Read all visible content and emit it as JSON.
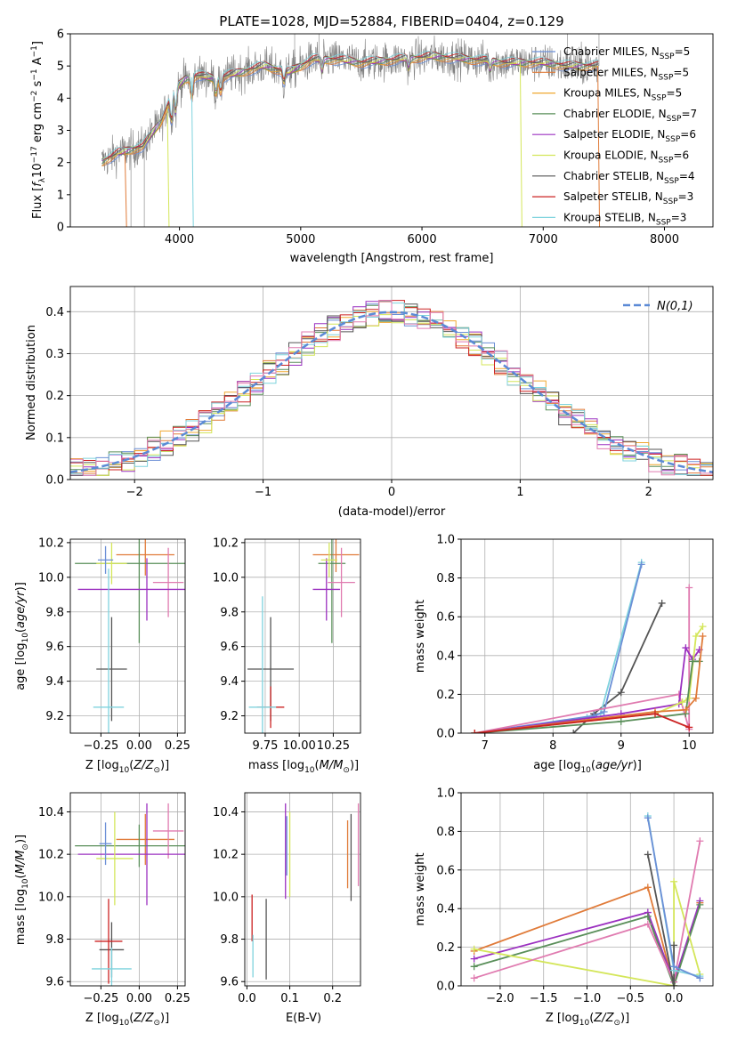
{
  "figure": {
    "title": "PLATE=1028, MJD=52884, FIBERID=0404, z=0.129"
  },
  "colors": {
    "chabrier_miles": "#6b8fd6",
    "salpeter_miles": "#e07b39",
    "kroupa_miles": "#f0a830",
    "chabrier_elodie": "#5a8f5a",
    "salpeter_elodie": "#9b30c0",
    "kroupa_elodie": "#d4e65a",
    "chabrier_stelib": "#555555",
    "salpeter_stelib": "#cc2222",
    "kroupa_stelib": "#7fd3de",
    "pink": "#e07bb0",
    "data": "#808080",
    "gaussian": "#5b8ad6",
    "grid": "#b0b0b0"
  },
  "chart_data": [
    {
      "type": "line",
      "id": "spectrum",
      "title": "PLATE=1028, MJD=52884, FIBERID=0404, z=0.129",
      "xlabel": "wavelength [Angstrom, rest frame]",
      "ylabel": "Flux [f_λ 10^-17 erg cm^-2 s^-1 A^-1]",
      "xlim": [
        3100,
        8400
      ],
      "ylim": [
        0,
        6
      ],
      "xticks": [
        4000,
        5000,
        6000,
        7000,
        8000
      ],
      "yticks": [
        0,
        1,
        2,
        3,
        4,
        5,
        6
      ],
      "grid": false,
      "legend_position": "upper-right",
      "continuum": {
        "x": [
          3350,
          3500,
          3700,
          3850,
          3950,
          4050,
          4150,
          4300,
          4500,
          4700,
          4900,
          5100,
          5300,
          5500,
          5800,
          6100,
          6400,
          6700,
          7000,
          7200,
          7450
        ],
        "y": [
          2.0,
          2.3,
          2.5,
          3.3,
          4.2,
          4.6,
          4.7,
          4.6,
          4.8,
          5.0,
          4.8,
          5.2,
          5.2,
          5.1,
          5.2,
          5.3,
          5.2,
          5.1,
          5.1,
          5.0,
          5.0
        ]
      },
      "series": [
        {
          "name": "Chabrier MILES, N_SSP=5",
          "color_key": "chabrier_miles"
        },
        {
          "name": "Salpeter MILES, N_SSP=5",
          "color_key": "salpeter_miles"
        },
        {
          "name": "Kroupa MILES, N_SSP=5",
          "color_key": "kroupa_miles"
        },
        {
          "name": "Chabrier ELODIE, N_SSP=7",
          "color_key": "chabrier_elodie"
        },
        {
          "name": "Salpeter ELODIE, N_SSP=6",
          "color_key": "salpeter_elodie"
        },
        {
          "name": "Kroupa ELODIE, N_SSP=6",
          "color_key": "kroupa_elodie"
        },
        {
          "name": "Chabrier STELIB, N_SSP=4",
          "color_key": "chabrier_stelib"
        },
        {
          "name": "Salpeter STELIB, N_SSP=3",
          "color_key": "salpeter_stelib"
        },
        {
          "name": "Kroupa STELIB, N_SSP=3",
          "color_key": "kroupa_stelib"
        }
      ]
    },
    {
      "type": "line",
      "id": "residuals",
      "xlabel": "(data-model)/error",
      "ylabel": "Normed distribution",
      "xlim": [
        -2.5,
        2.5
      ],
      "ylim": [
        0,
        0.46
      ],
      "xticks": [
        -2,
        -1,
        0,
        1,
        2
      ],
      "yticks": [
        0.0,
        0.1,
        0.2,
        0.3,
        0.4
      ],
      "grid": true,
      "legend_position": "upper-right",
      "gaussian_label": "N(0,1)",
      "bin_width": 0.1
    },
    {
      "type": "scatter",
      "id": "z_age",
      "xlabel": "Z [log10(Z/Z☉)]",
      "ylabel": "age [log10(age/yr)]",
      "xlim": [
        -0.45,
        0.3
      ],
      "ylim": [
        9.1,
        10.22
      ],
      "xticks": [
        -0.25,
        0.0,
        0.25
      ],
      "yticks": [
        9.2,
        9.4,
        9.6,
        9.8,
        10.0,
        10.2
      ],
      "grid": true,
      "points": [
        {
          "color_key": "salpeter_miles",
          "x": 0.04,
          "y": 10.13,
          "xerr": 0.19,
          "yerr": 0.12
        },
        {
          "color_key": "chabrier_elodie",
          "x": 0.0,
          "y": 10.08,
          "xerr": 0.42,
          "yerr": 0.46
        },
        {
          "color_key": "pink",
          "x": 0.19,
          "y": 9.97,
          "xerr": 0.1,
          "yerr": 0.2
        },
        {
          "color_key": "salpeter_elodie",
          "x": 0.05,
          "y": 9.93,
          "xerr": 0.45,
          "yerr": 0.18
        },
        {
          "color_key": "kroupa_elodie",
          "x": -0.18,
          "y": 10.08,
          "xerr": 0.1,
          "yerr": 0.12
        },
        {
          "color_key": "chabrier_stelib",
          "x": -0.18,
          "y": 9.47,
          "xerr": 0.1,
          "yerr": 0.3
        },
        {
          "color_key": "kroupa_stelib",
          "x": -0.2,
          "y": 9.25,
          "xerr": 0.1,
          "yerr": 0.8
        },
        {
          "color_key": "chabrier_miles",
          "x": -0.22,
          "y": 10.1,
          "xerr": 0.05,
          "yerr": 0.08
        }
      ]
    },
    {
      "type": "scatter",
      "id": "mass_age",
      "xlabel": "mass [log10(M/M☉)]",
      "ylabel": "",
      "xlim": [
        9.6,
        10.45
      ],
      "ylim": [
        9.1,
        10.22
      ],
      "xticks": [
        9.75,
        10.0,
        10.25
      ],
      "yticks": [
        9.2,
        9.4,
        9.6,
        9.8,
        10.0,
        10.2
      ],
      "grid": true,
      "points": [
        {
          "color_key": "salpeter_miles",
          "x": 10.27,
          "y": 10.13,
          "xerr": 0.17,
          "yerr": 0.1
        },
        {
          "color_key": "chabrier_elodie",
          "x": 10.24,
          "y": 10.08,
          "xerr": 0.1,
          "yerr": 0.46
        },
        {
          "color_key": "pink",
          "x": 10.31,
          "y": 9.97,
          "xerr": 0.1,
          "yerr": 0.2
        },
        {
          "color_key": "salpeter_elodie",
          "x": 10.2,
          "y": 9.93,
          "xerr": 0.1,
          "yerr": 0.18
        },
        {
          "color_key": "kroupa_elodie",
          "x": 10.22,
          "y": 10.1,
          "xerr": 0.06,
          "yerr": 0.1
        },
        {
          "color_key": "chabrier_stelib",
          "x": 9.79,
          "y": 9.47,
          "xerr": 0.17,
          "yerr": 0.3
        },
        {
          "color_key": "salpeter_stelib",
          "x": 9.79,
          "y": 9.25,
          "xerr": 0.1,
          "yerr": 0.12
        },
        {
          "color_key": "kroupa_stelib",
          "x": 9.73,
          "y": 9.25,
          "xerr": 0.1,
          "yerr": 0.64
        }
      ]
    },
    {
      "type": "line",
      "id": "age_massweight",
      "xlabel": "age [log10(age/yr)]",
      "ylabel": "mass weight",
      "xlim": [
        6.65,
        10.35
      ],
      "ylim": [
        0,
        1.0
      ],
      "xticks": [
        7,
        8,
        9,
        10
      ],
      "yticks": [
        0.0,
        0.2,
        0.4,
        0.6,
        0.8,
        1.0
      ],
      "grid": true,
      "series": [
        {
          "color_key": "chabrier_stelib",
          "x": [
            8.3,
            8.6,
            9.0,
            9.6
          ],
          "y": [
            0.0,
            0.1,
            0.21,
            0.67
          ]
        },
        {
          "color_key": "kroupa_stelib",
          "x": [
            6.85,
            8.5,
            8.7,
            9.3
          ],
          "y": [
            0.0,
            0.08,
            0.1,
            0.88
          ]
        },
        {
          "color_key": "chabrier_miles",
          "x": [
            6.85,
            8.6,
            8.75,
            9.3
          ],
          "y": [
            0.0,
            0.09,
            0.11,
            0.87
          ]
        },
        {
          "color_key": "pink",
          "x": [
            6.85,
            9.85,
            10.0,
            10.0
          ],
          "y": [
            0.0,
            0.2,
            0.02,
            0.75
          ]
        },
        {
          "color_key": "salpeter_elodie",
          "x": [
            6.85,
            9.0,
            9.85,
            9.95,
            10.05,
            10.15
          ],
          "y": [
            0.0,
            0.1,
            0.15,
            0.44,
            0.38,
            0.43
          ]
        },
        {
          "color_key": "kroupa_elodie",
          "x": [
            6.85,
            9.5,
            9.9,
            10.0,
            10.1,
            10.2
          ],
          "y": [
            0.0,
            0.1,
            0.16,
            0.18,
            0.5,
            0.55
          ]
        },
        {
          "color_key": "chabrier_elodie",
          "x": [
            6.85,
            9.0,
            9.95,
            10.05,
            10.15
          ],
          "y": [
            0.0,
            0.06,
            0.1,
            0.37,
            0.37
          ]
        },
        {
          "color_key": "salpeter_miles",
          "x": [
            6.85,
            9.5,
            9.95,
            10.1,
            10.2
          ],
          "y": [
            0.0,
            0.11,
            0.12,
            0.18,
            0.5
          ]
        },
        {
          "color_key": "salpeter_stelib",
          "x": [
            6.85,
            9.5,
            10.0
          ],
          "y": [
            0.0,
            0.1,
            0.03
          ]
        }
      ]
    },
    {
      "type": "scatter",
      "id": "z_mass",
      "xlabel": "Z [log10(Z/Z☉)]",
      "ylabel": "mass [log10(M/M☉)]",
      "xlim": [
        -0.45,
        0.3
      ],
      "ylim": [
        9.58,
        10.49
      ],
      "xticks": [
        -0.25,
        0.0,
        0.25
      ],
      "yticks": [
        9.6,
        9.8,
        10.0,
        10.2,
        10.4
      ],
      "grid": true,
      "points": [
        {
          "color_key": "salpeter_miles",
          "x": 0.04,
          "y": 10.27,
          "xerr": 0.19,
          "yerr": 0.12
        },
        {
          "color_key": "chabrier_elodie",
          "x": 0.0,
          "y": 10.24,
          "xerr": 0.42,
          "yerr": 0.1
        },
        {
          "color_key": "pink",
          "x": 0.19,
          "y": 10.31,
          "xerr": 0.1,
          "yerr": 0.13
        },
        {
          "color_key": "salpeter_elodie",
          "x": 0.05,
          "y": 10.2,
          "xerr": 0.45,
          "yerr": 0.24
        },
        {
          "color_key": "kroupa_elodie",
          "x": -0.16,
          "y": 10.18,
          "xerr": 0.12,
          "yerr": 0.22
        },
        {
          "color_key": "chabrier_stelib",
          "x": -0.18,
          "y": 9.75,
          "xerr": 0.08,
          "yerr": 0.13
        },
        {
          "color_key": "salpeter_stelib",
          "x": -0.2,
          "y": 9.79,
          "xerr": 0.09,
          "yerr": 0.2
        },
        {
          "color_key": "kroupa_stelib",
          "x": -0.18,
          "y": 9.66,
          "xerr": 0.13,
          "yerr": 0.1
        },
        {
          "color_key": "chabrier_miles",
          "x": -0.22,
          "y": 10.25,
          "xerr": 0.04,
          "yerr": 0.1
        }
      ]
    },
    {
      "type": "scatter",
      "id": "ebv_mass",
      "xlabel": "E(B-V)",
      "ylabel": "",
      "xlim": [
        -0.005,
        0.265
      ],
      "ylim": [
        9.58,
        10.49
      ],
      "xticks": [
        0.0,
        0.1,
        0.2
      ],
      "yticks": [
        9.6,
        9.8,
        10.0,
        10.2,
        10.4
      ],
      "grid": true,
      "vlines": [
        {
          "color_key": "salpeter_stelib",
          "x": 0.012,
          "y0": 9.79,
          "y1": 10.01
        },
        {
          "color_key": "kroupa_stelib",
          "x": 0.014,
          "y0": 9.62,
          "y1": 9.82
        },
        {
          "color_key": "chabrier_stelib",
          "x": 0.045,
          "y0": 9.61,
          "y1": 9.99
        },
        {
          "color_key": "salpeter_elodie",
          "x": 0.09,
          "y0": 9.99,
          "y1": 10.44
        },
        {
          "color_key": "chabrier_miles",
          "x": 0.093,
          "y0": 10.1,
          "y1": 10.38
        },
        {
          "color_key": "kroupa_elodie",
          "x": 0.1,
          "y0": 10.0,
          "y1": 10.4
        },
        {
          "color_key": "salpeter_miles",
          "x": 0.235,
          "y0": 10.04,
          "y1": 10.36
        },
        {
          "color_key": "chabrier_stelib",
          "x": 0.243,
          "y0": 9.98,
          "y1": 10.39
        },
        {
          "color_key": "pink",
          "x": 0.26,
          "y0": 10.05,
          "y1": 10.44
        }
      ]
    },
    {
      "type": "line",
      "id": "z_massweight",
      "xlabel": "Z [log10(Z/Z☉)]",
      "ylabel": "mass weight",
      "xlim": [
        -2.45,
        0.45
      ],
      "ylim": [
        0,
        1.0
      ],
      "xticks": [
        -2.0,
        -1.5,
        -1.0,
        -0.5,
        0.0
      ],
      "yticks": [
        0.0,
        0.2,
        0.4,
        0.6,
        0.8,
        1.0
      ],
      "grid": true,
      "series": [
        {
          "color_key": "salpeter_miles",
          "x": [
            -2.3,
            -0.3,
            0.0,
            0.3
          ],
          "y": [
            0.18,
            0.51,
            0.0,
            0.43
          ]
        },
        {
          "color_key": "salpeter_elodie",
          "x": [
            -2.3,
            -0.3,
            0.0,
            0.3
          ],
          "y": [
            0.14,
            0.38,
            0.02,
            0.44
          ]
        },
        {
          "color_key": "chabrier_elodie",
          "x": [
            -2.3,
            -0.3,
            0.0,
            0.3
          ],
          "y": [
            0.1,
            0.36,
            0.0,
            0.42
          ]
        },
        {
          "color_key": "kroupa_elodie",
          "x": [
            -2.3,
            0.0,
            0.0,
            0.3
          ],
          "y": [
            0.19,
            0.0,
            0.54,
            0.06
          ]
        },
        {
          "color_key": "pink",
          "x": [
            -2.3,
            -0.3,
            0.0,
            0.3
          ],
          "y": [
            0.04,
            0.32,
            0.02,
            0.75
          ]
        },
        {
          "color_key": "chabrier_stelib",
          "x": [
            -0.3,
            0.0,
            0.0
          ],
          "y": [
            0.68,
            0.0,
            0.21
          ]
        },
        {
          "color_key": "kroupa_stelib",
          "x": [
            -0.3,
            0.0,
            0.3
          ],
          "y": [
            0.88,
            0.08,
            0.05
          ]
        },
        {
          "color_key": "chabrier_miles",
          "x": [
            -0.3,
            0.0,
            0.3
          ],
          "y": [
            0.87,
            0.1,
            0.04
          ]
        }
      ]
    }
  ]
}
